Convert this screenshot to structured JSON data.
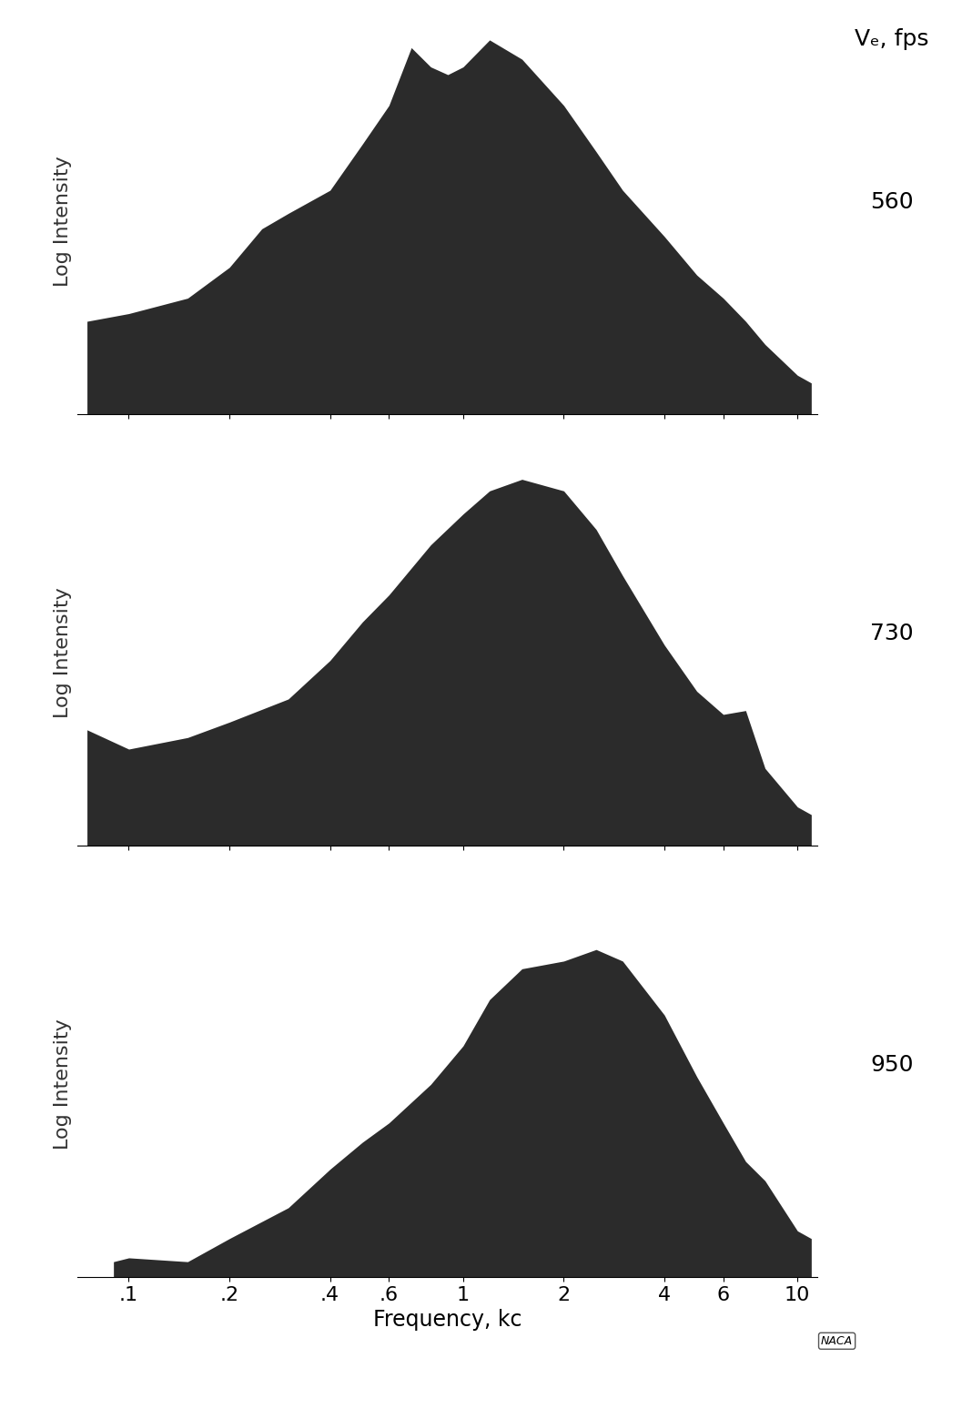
{
  "column_title": "Vₑ, fps",
  "logo": "NACA",
  "chart_data": [
    {
      "type": "area",
      "annotation": "560",
      "y_label": "Log Intensity",
      "color": "#2b2b2b",
      "x": [
        0.075,
        0.1,
        0.15,
        0.2,
        0.25,
        0.3,
        0.4,
        0.5,
        0.6,
        0.7,
        0.8,
        0.9,
        1.0,
        1.2,
        1.5,
        2,
        2.5,
        3,
        4,
        5,
        6,
        7,
        8,
        10,
        11
      ],
      "values": [
        24,
        26,
        30,
        38,
        48,
        52,
        58,
        70,
        80,
        95,
        90,
        88,
        90,
        97,
        92,
        80,
        68,
        58,
        46,
        36,
        30,
        24,
        18,
        10,
        8
      ],
      "log": "x",
      "xlim": [
        0.07,
        11.5
      ],
      "ylim": [
        0,
        100
      ],
      "xticks": [
        {
          "value": 0.1,
          "label": ".1"
        },
        {
          "value": 0.2,
          "label": ".2"
        },
        {
          "value": 0.4,
          "label": ".4"
        },
        {
          "value": 0.6,
          "label": ".6"
        },
        1,
        2,
        4,
        6,
        10
      ],
      "tick_labels": false,
      "grid": false
    },
    {
      "type": "area",
      "annotation": "730",
      "y_label": "Log Intensity",
      "color": "#2b2b2b",
      "x": [
        0.075,
        0.1,
        0.15,
        0.2,
        0.3,
        0.4,
        0.5,
        0.6,
        0.8,
        1.0,
        1.2,
        1.5,
        2,
        2.5,
        3,
        4,
        5,
        6,
        7,
        8,
        10,
        11
      ],
      "values": [
        30,
        25,
        28,
        32,
        38,
        48,
        58,
        65,
        78,
        86,
        92,
        95,
        92,
        82,
        70,
        52,
        40,
        34,
        35,
        20,
        10,
        8
      ],
      "log": "x",
      "xlim": [
        0.07,
        11.5
      ],
      "ylim": [
        0,
        100
      ],
      "xticks": [
        {
          "value": 0.1,
          "label": ".1"
        },
        {
          "value": 0.2,
          "label": ".2"
        },
        {
          "value": 0.4,
          "label": ".4"
        },
        {
          "value": 0.6,
          "label": ".6"
        },
        1,
        2,
        4,
        6,
        10
      ],
      "tick_labels": false,
      "grid": false
    },
    {
      "type": "area",
      "annotation": "950",
      "y_label": "Log Intensity",
      "x_label": "Frequency, kc",
      "color": "#2b2b2b",
      "x": [
        0.09,
        0.1,
        0.15,
        0.2,
        0.3,
        0.4,
        0.5,
        0.6,
        0.8,
        1.0,
        1.2,
        1.5,
        2,
        2.5,
        3,
        4,
        5,
        6,
        7,
        8,
        10,
        11
      ],
      "values": [
        4,
        5,
        4,
        10,
        18,
        28,
        35,
        40,
        50,
        60,
        72,
        80,
        82,
        85,
        82,
        68,
        52,
        40,
        30,
        25,
        12,
        10
      ],
      "log": "x",
      "xlim": [
        0.07,
        11.5
      ],
      "ylim": [
        0,
        100
      ],
      "xticks": [
        {
          "value": 0.1,
          "label": ".1"
        },
        {
          "value": 0.2,
          "label": ".2"
        },
        {
          "value": 0.4,
          "label": ".4"
        },
        {
          "value": 0.6,
          "label": ".6"
        },
        1,
        2,
        4,
        6,
        10
      ],
      "tick_labels": "x",
      "grid": false
    }
  ]
}
